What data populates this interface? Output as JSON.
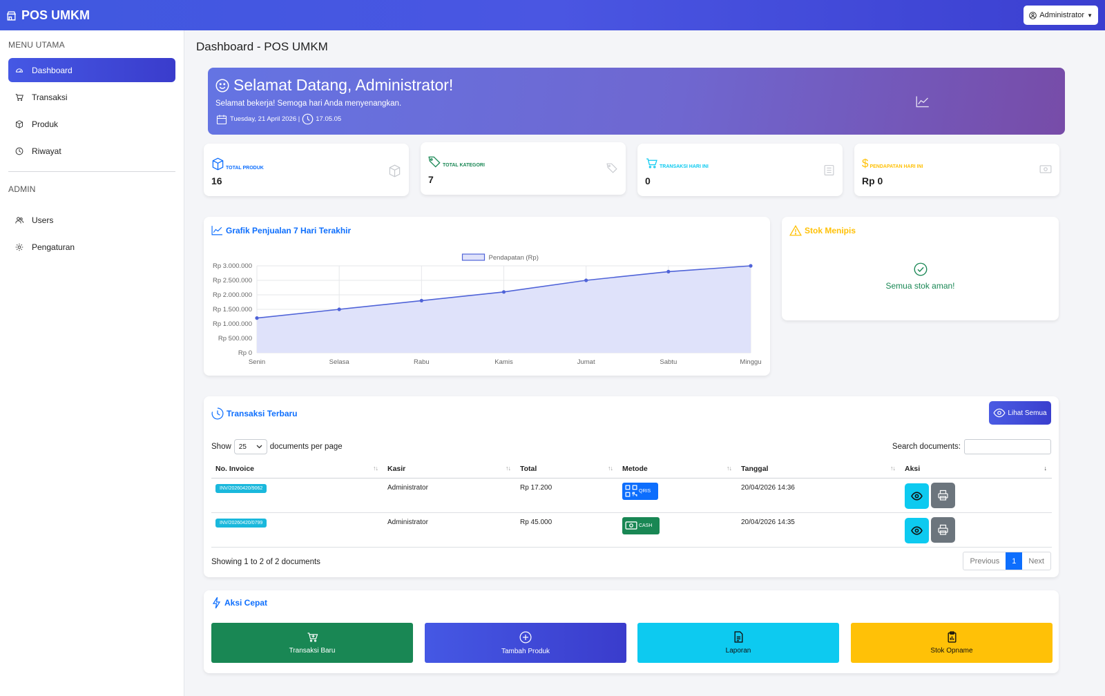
{
  "brand": {
    "title": "POS UMKM"
  },
  "user_menu": {
    "label": "Administrator"
  },
  "sidebar": {
    "section1": "MENU UTAMA",
    "items": [
      {
        "label": "Dashboard",
        "icon": "dashboard-icon",
        "active": true
      },
      {
        "label": "Transaksi",
        "icon": "cart-icon"
      },
      {
        "label": "Produk",
        "icon": "box-icon"
      },
      {
        "label": "Riwayat",
        "icon": "clock-icon"
      }
    ],
    "section2": "ADMIN",
    "admin_items": [
      {
        "label": "Users",
        "icon": "users-icon"
      },
      {
        "label": "Pengaturan",
        "icon": "gear-icon"
      }
    ]
  },
  "page": {
    "title": "Dashboard - POS UMKM"
  },
  "welcome": {
    "heading": "Selamat Datang, Administrator!",
    "subtitle": "Selamat bekerja! Semoga hari Anda menyenangkan.",
    "date": "Tuesday, 21 April 2026 |",
    "time": "17.05.05"
  },
  "stats": [
    {
      "label": "TOTAL PRODUK",
      "value": "16",
      "color": "#0d6efd"
    },
    {
      "label": "TOTAL KATEGORI",
      "value": "7",
      "color": "#198754"
    },
    {
      "label": "TRANSAKSI HARI INI",
      "value": "0",
      "color": "#0dcaf0"
    },
    {
      "label": "PENDAPATAN HARI INI",
      "value": "Rp 0",
      "color": "#ffc107"
    }
  ],
  "sales_chart": {
    "title": "Grafik Penjualan 7 Hari Terakhir"
  },
  "chart_data": {
    "type": "area",
    "categories": [
      "Senin",
      "Selasa",
      "Rabu",
      "Kamis",
      "Jumat",
      "Sabtu",
      "Minggu"
    ],
    "series": [
      {
        "name": "Pendapatan (Rp)",
        "values": [
          1200000,
          1500000,
          1800000,
          2100000,
          2500000,
          2800000,
          3000000
        ]
      }
    ],
    "yticks": [
      "Rp 0",
      "Rp 500.000",
      "Rp 1.000.000",
      "Rp 1.500.000",
      "Rp 2.000.000",
      "Rp 2.500.000",
      "Rp 3.000.000"
    ],
    "ylim": [
      0,
      3000000
    ],
    "grid": true,
    "legend": "top-center",
    "line_color": "#4f63d8",
    "fill_color": "#dfe2fa"
  },
  "stock": {
    "title": "Stok Menipis",
    "message": "Semua stok aman!"
  },
  "transactions": {
    "title": "Transaksi Terbaru",
    "view_all": "Lihat Semua",
    "show_label": "Show",
    "per_page": "25",
    "per_page_suffix": "documents per page",
    "search_label": "Search documents:",
    "search_value": "",
    "columns": [
      "No. Invoice",
      "Kasir",
      "Total",
      "Metode",
      "Tanggal",
      "Aksi"
    ],
    "rows": [
      {
        "invoice": "INV/20260420/9062",
        "kasir": "Administrator",
        "total": "Rp 17.200",
        "metode": "QRIS",
        "metode_color": "#0d6efd",
        "tanggal": "20/04/2026 14:36"
      },
      {
        "invoice": "INV/20260420/0799",
        "kasir": "Administrator",
        "total": "Rp 45.000",
        "metode": "CASH",
        "metode_color": "#198754",
        "tanggal": "20/04/2026 14:35"
      }
    ],
    "info": "Showing 1 to 2 of 2 documents",
    "pager": {
      "prev": "Previous",
      "current": "1",
      "next": "Next"
    }
  },
  "quick_actions": {
    "title": "Aksi Cepat",
    "buttons": [
      {
        "label": "Transaksi Baru",
        "icon": "cart-plus-icon",
        "color": "#198754"
      },
      {
        "label": "Tambah Produk",
        "icon": "plus-circle-icon",
        "color": "#4456e0"
      },
      {
        "label": "Laporan",
        "icon": "file-icon",
        "color": "#0dcaf0"
      },
      {
        "label": "Stok Opname",
        "icon": "clipboard-icon",
        "color": "#ffc107"
      }
    ]
  }
}
